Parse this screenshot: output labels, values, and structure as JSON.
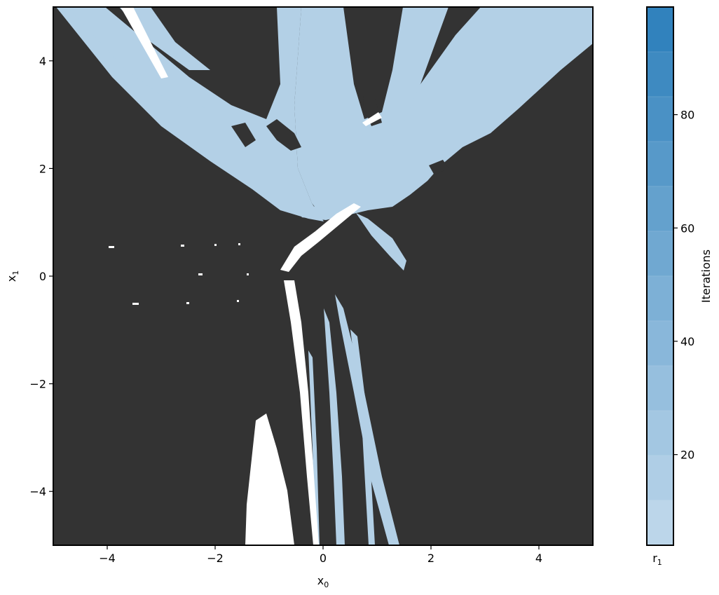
{
  "chart_data": {
    "type": "heatmap",
    "title": "",
    "xlabel": "x",
    "xlabel_sub": "0",
    "ylabel": "x",
    "ylabel_sub": "1",
    "xlim": [
      -5,
      5
    ],
    "ylim": [
      -5,
      5
    ],
    "x_ticks": [
      -4,
      -2,
      0,
      2,
      4
    ],
    "y_ticks": [
      -4,
      -2,
      0,
      2,
      4
    ],
    "x_tick_labels": [
      "−4",
      "−2",
      "0",
      "2",
      "4"
    ],
    "y_tick_labels": [
      "−4",
      "−2",
      "0",
      "2",
      "4"
    ],
    "grid": false,
    "background_color": "#333333",
    "unconverged_color": "#ffffff",
    "colorbar": {
      "label": "Iterations",
      "range": [
        4,
        99
      ],
      "ticks": [
        20,
        40,
        60,
        80
      ],
      "tick_labels": [
        "20",
        "40",
        "60",
        "80"
      ],
      "bottom_label": "r",
      "bottom_label_sub": "1",
      "levels": 12,
      "color_low": "#bcd6ea",
      "color_high": "#3182bd"
    }
  }
}
